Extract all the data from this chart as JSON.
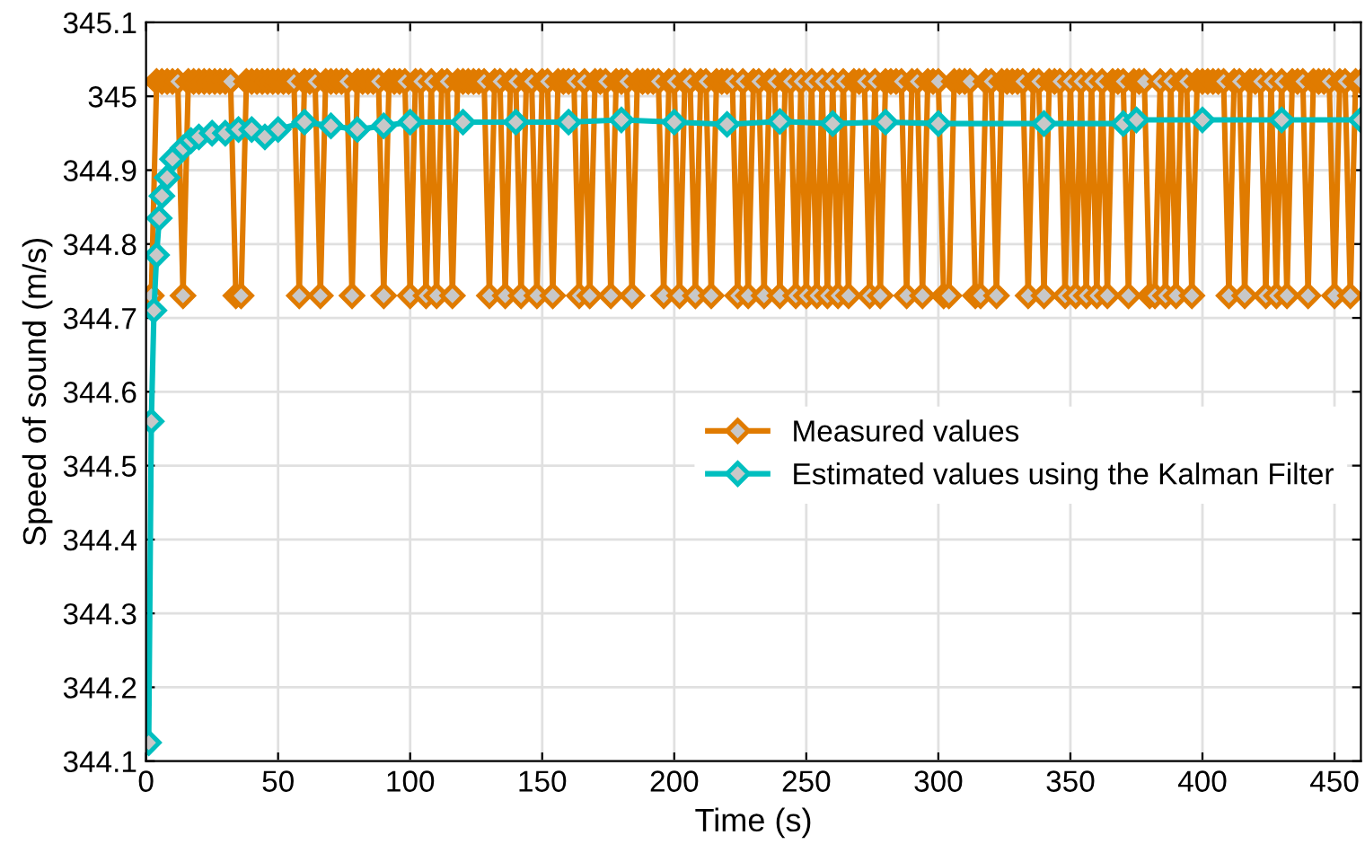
{
  "chart_data": {
    "type": "line",
    "xlabel": "Time (s)",
    "ylabel": "Speed of sound (m/s)",
    "xlim": [
      0,
      460
    ],
    "xticks": [
      0,
      50,
      100,
      150,
      200,
      250,
      300,
      350,
      400,
      450
    ],
    "ylim": [
      344.1,
      345.1
    ],
    "yticks": [
      344.1,
      344.2,
      344.3,
      344.4,
      344.5,
      344.6,
      344.7,
      344.8,
      344.9,
      345,
      345.1
    ],
    "grid": true,
    "legend": "bottom right",
    "marker": "diamond",
    "line_style": "solid",
    "series": [
      {
        "name": "Measured values",
        "color": "#e07b00",
        "x": [
          2,
          4,
          6,
          8,
          10,
          12,
          14,
          16,
          18,
          20,
          22,
          24,
          26,
          28,
          30,
          32,
          34,
          36,
          38,
          40,
          42,
          44,
          46,
          48,
          50,
          52,
          54,
          56,
          58,
          60,
          62,
          64,
          66,
          68,
          70,
          72,
          74,
          76,
          78,
          80,
          82,
          84,
          86,
          88,
          90,
          92,
          94,
          96,
          98,
          100,
          102,
          104,
          106,
          108,
          110,
          112,
          114,
          116,
          118,
          120,
          122,
          124,
          126,
          128,
          130,
          132,
          134,
          136,
          138,
          140,
          142,
          144,
          146,
          148,
          150,
          152,
          154,
          156,
          158,
          160,
          162,
          164,
          166,
          168,
          170,
          172,
          174,
          176,
          178,
          180,
          182,
          184,
          186,
          188,
          190,
          192,
          194,
          196,
          198,
          200,
          202,
          204,
          206,
          208,
          210,
          212,
          214,
          216,
          218,
          220,
          222,
          224,
          226,
          228,
          230,
          232,
          234,
          236,
          238,
          240,
          242,
          244,
          246,
          248,
          250,
          252,
          254,
          256,
          258,
          260,
          262,
          264,
          266,
          268,
          270,
          272,
          274,
          276,
          278,
          280,
          282,
          284,
          286,
          288,
          290,
          292,
          294,
          296,
          298,
          300,
          302,
          304,
          306,
          308,
          310,
          312,
          314,
          316,
          318,
          320,
          322,
          324,
          326,
          328,
          330,
          332,
          334,
          336,
          338,
          340,
          342,
          344,
          346,
          348,
          350,
          352,
          354,
          356,
          358,
          360,
          362,
          364,
          366,
          368,
          370,
          372,
          374,
          376,
          378,
          380,
          382,
          384,
          386,
          388,
          390,
          392,
          394,
          396,
          398,
          400,
          402,
          404,
          406,
          408,
          410,
          412,
          414,
          416,
          418,
          420,
          422,
          424,
          426,
          428,
          430,
          432,
          434,
          436,
          438,
          440,
          442,
          444,
          446,
          448,
          450,
          452,
          454,
          456,
          458,
          460
        ],
        "values": [
          344.73,
          345.02,
          345.02,
          345.02,
          345.02,
          345.02,
          344.73,
          345.02,
          345.02,
          345.02,
          345.02,
          345.02,
          345.02,
          345.02,
          345.02,
          345.02,
          344.73,
          344.73,
          345.02,
          345.02,
          345.02,
          345.02,
          345.02,
          345.02,
          345.02,
          345.02,
          345.02,
          345.02,
          344.73,
          345.02,
          345.02,
          345.02,
          344.73,
          345.02,
          345.02,
          345.02,
          345.02,
          345.02,
          344.73,
          345.02,
          345.02,
          345.02,
          345.02,
          345.02,
          344.73,
          345.02,
          345.02,
          345.02,
          345.02,
          344.73,
          345.02,
          345.02,
          344.73,
          345.02,
          344.73,
          345.02,
          345.02,
          344.73,
          345.02,
          345.02,
          345.02,
          345.02,
          345.02,
          345.02,
          344.73,
          345.02,
          345.02,
          344.73,
          345.02,
          345.02,
          344.73,
          345.02,
          345.02,
          344.73,
          345.02,
          345.02,
          344.73,
          345.02,
          345.02,
          345.02,
          345.02,
          344.73,
          345.02,
          344.73,
          345.02,
          345.02,
          345.02,
          344.73,
          345.02,
          345.02,
          345.02,
          344.73,
          345.02,
          345.02,
          345.02,
          345.02,
          345.02,
          344.73,
          345.02,
          345.02,
          344.73,
          345.02,
          345.02,
          344.73,
          345.02,
          345.02,
          344.73,
          345.02,
          345.02,
          345.02,
          345.02,
          344.73,
          345.02,
          344.73,
          345.02,
          345.02,
          344.73,
          345.02,
          345.02,
          344.73,
          345.02,
          345.02,
          344.73,
          345.02,
          344.73,
          345.02,
          344.73,
          345.02,
          344.73,
          345.02,
          344.73,
          345.02,
          344.73,
          345.02,
          345.02,
          345.02,
          344.73,
          345.02,
          344.73,
          345.02,
          345.02,
          345.02,
          345.02,
          344.73,
          345.02,
          345.02,
          344.73,
          345.02,
          345.02,
          345.02,
          344.73,
          344.73,
          345.02,
          345.02,
          345.02,
          345.02,
          344.73,
          344.73,
          345.02,
          345.02,
          344.73,
          345.02,
          345.02,
          345.02,
          345.02,
          345.02,
          344.73,
          345.02,
          345.02,
          344.73,
          345.02,
          345.02,
          345.02,
          344.73,
          345.02,
          344.73,
          345.02,
          344.73,
          345.02,
          344.73,
          345.02,
          344.73,
          345.02,
          345.02,
          345.02,
          344.73,
          345.02,
          345.02,
          345.02,
          344.73,
          344.73,
          345.02,
          344.73,
          345.02,
          344.73,
          345.02,
          345.02,
          344.73,
          345.02,
          345.02,
          345.02,
          345.02,
          345.02,
          345.02,
          344.73,
          345.02,
          345.02,
          344.73,
          345.02,
          345.02,
          345.02,
          344.73,
          345.02,
          344.73,
          345.02,
          344.73,
          345.02,
          345.02,
          345.02,
          344.73,
          345.02,
          345.02,
          345.02,
          345.02,
          344.73,
          345.02,
          345.02,
          344.73,
          345.02,
          345.02
        ]
      },
      {
        "name": "Estimated values using the Kalman Filter",
        "color": "#00bfbf",
        "x": [
          1,
          2,
          3,
          4,
          5,
          6,
          8,
          10,
          14,
          17,
          20,
          25,
          30,
          35,
          40,
          45,
          50,
          60,
          70,
          80,
          90,
          100,
          120,
          140,
          160,
          180,
          200,
          220,
          240,
          260,
          280,
          300,
          340,
          370,
          375,
          400,
          430,
          460
        ],
        "values": [
          344.125,
          344.56,
          344.71,
          344.785,
          344.835,
          344.865,
          344.89,
          344.915,
          344.93,
          344.94,
          344.945,
          344.95,
          344.95,
          344.955,
          344.955,
          344.945,
          344.955,
          344.965,
          344.96,
          344.955,
          344.96,
          344.965,
          344.965,
          344.965,
          344.965,
          344.968,
          344.965,
          344.962,
          344.966,
          344.963,
          344.965,
          344.963,
          344.963,
          344.963,
          344.968,
          344.968,
          344.968,
          344.968
        ]
      }
    ]
  }
}
